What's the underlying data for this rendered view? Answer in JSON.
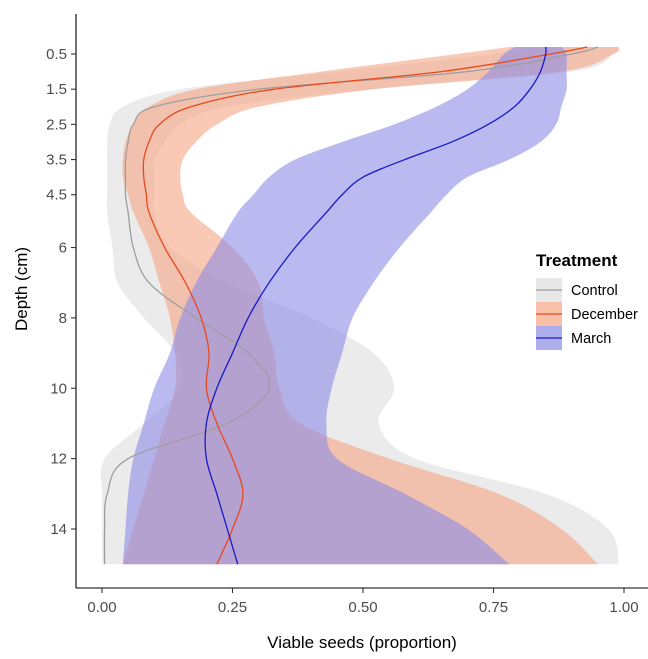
{
  "chart_data": {
    "type": "area",
    "xlabel": "Viable seeds (proportion)",
    "ylabel": "Depth (cm)",
    "xlim": [
      0,
      1
    ],
    "ylim": [
      15.2,
      -0.5
    ],
    "y_reversed": true,
    "x_ticks": [
      {
        "value": 0.0,
        "label": "0.00"
      },
      {
        "value": 0.25,
        "label": "0.25"
      },
      {
        "value": 0.5,
        "label": "0.50"
      },
      {
        "value": 0.75,
        "label": "0.75"
      },
      {
        "value": 1.0,
        "label": "1.00"
      }
    ],
    "y_ticks": [
      {
        "value": 0.5,
        "label": "0.5"
      },
      {
        "value": 1.5,
        "label": "1.5"
      },
      {
        "value": 2.5,
        "label": "2.5"
      },
      {
        "value": 3.5,
        "label": "3.5"
      },
      {
        "value": 4.5,
        "label": "4.5"
      },
      {
        "value": 6,
        "label": "6"
      },
      {
        "value": 8,
        "label": "8"
      },
      {
        "value": 10,
        "label": "10"
      },
      {
        "value": 12,
        "label": "12"
      },
      {
        "value": 14,
        "label": "14"
      }
    ],
    "legend": {
      "title": "Treatment",
      "position": "right"
    },
    "depth": [
      0.0,
      0.5,
      1.0,
      1.5,
      2.0,
      2.5,
      3.0,
      3.5,
      4.0,
      4.5,
      5.0,
      6.0,
      7.0,
      8.0,
      9.0,
      10.0,
      11.0,
      12.0,
      13.0,
      14.0,
      15.0
    ],
    "series": [
      {
        "name": "Control",
        "color": "#9e9e9e",
        "fill": "#e0e0e0",
        "fill_opacity": 0.65,
        "mean": [
          0.95,
          0.9,
          0.7,
          0.3,
          0.1,
          0.06,
          0.05,
          0.045,
          0.045,
          0.045,
          0.05,
          0.06,
          0.09,
          0.18,
          0.28,
          0.32,
          0.24,
          0.05,
          0.01,
          0.005,
          0.005
        ],
        "lower": [
          0.82,
          0.75,
          0.45,
          0.15,
          0.04,
          0.015,
          0.01,
          0.01,
          0.01,
          0.01,
          0.01,
          0.02,
          0.03,
          0.08,
          0.14,
          0.15,
          0.08,
          0.005,
          0.0,
          0.0,
          0.0
        ],
        "upper": [
          0.99,
          0.98,
          0.9,
          0.52,
          0.24,
          0.15,
          0.12,
          0.1,
          0.1,
          0.1,
          0.1,
          0.13,
          0.24,
          0.4,
          0.52,
          0.56,
          0.53,
          0.6,
          0.85,
          0.97,
          0.99
        ]
      },
      {
        "name": "December",
        "color": "#e8491c",
        "fill": "#f5a585",
        "fill_opacity": 0.6,
        "mean": [
          0.93,
          0.86,
          0.65,
          0.33,
          0.17,
          0.11,
          0.09,
          0.08,
          0.08,
          0.085,
          0.09,
          0.12,
          0.16,
          0.19,
          0.205,
          0.2,
          0.22,
          0.25,
          0.27,
          0.25,
          0.22
        ],
        "lower": [
          0.78,
          0.68,
          0.42,
          0.18,
          0.09,
          0.06,
          0.045,
          0.04,
          0.04,
          0.05,
          0.06,
          0.09,
          0.11,
          0.13,
          0.14,
          0.14,
          0.12,
          0.1,
          0.08,
          0.06,
          0.04
        ],
        "upper": [
          0.99,
          0.98,
          0.88,
          0.52,
          0.3,
          0.22,
          0.18,
          0.155,
          0.15,
          0.155,
          0.17,
          0.25,
          0.3,
          0.31,
          0.33,
          0.34,
          0.38,
          0.55,
          0.76,
          0.88,
          0.95
        ]
      },
      {
        "name": "March",
        "color": "#1a1ac8",
        "fill": "#8c8ce6",
        "fill_opacity": 0.6,
        "mean": [
          0.85,
          0.85,
          0.84,
          0.82,
          0.79,
          0.74,
          0.67,
          0.58,
          0.5,
          0.46,
          0.43,
          0.37,
          0.32,
          0.28,
          0.25,
          0.22,
          0.2,
          0.2,
          0.22,
          0.24,
          0.26
        ],
        "lower": [
          0.79,
          0.77,
          0.74,
          0.7,
          0.64,
          0.56,
          0.46,
          0.37,
          0.32,
          0.29,
          0.26,
          0.22,
          0.18,
          0.15,
          0.13,
          0.1,
          0.08,
          0.06,
          0.05,
          0.045,
          0.04
        ],
        "upper": [
          0.88,
          0.89,
          0.89,
          0.89,
          0.88,
          0.87,
          0.84,
          0.78,
          0.7,
          0.66,
          0.63,
          0.57,
          0.52,
          0.48,
          0.46,
          0.44,
          0.43,
          0.45,
          0.58,
          0.7,
          0.78
        ]
      }
    ]
  }
}
